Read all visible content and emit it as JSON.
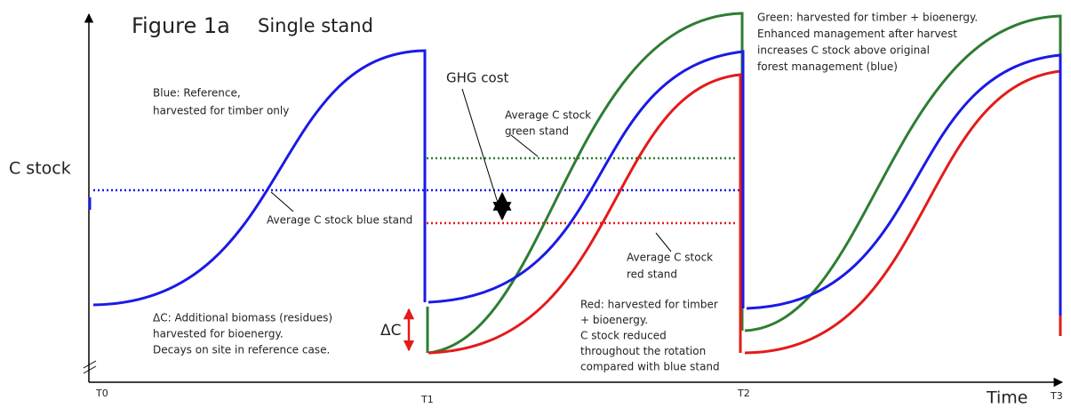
{
  "header": {
    "title": "Figure 1a",
    "subtitle": "Single stand"
  },
  "axes": {
    "y_label": "C stock",
    "x_label": "Time",
    "ticks": [
      "T0",
      "T1",
      "T2",
      "T3"
    ]
  },
  "annotations": {
    "blue_note": [
      "Blue: Reference,",
      "harvested for timber only"
    ],
    "ghg_cost": "GHG cost",
    "avg_green": [
      "Average C stock",
      "green stand"
    ],
    "avg_blue": "Average C stock blue stand",
    "avg_red": [
      "Average C stock",
      "red  stand"
    ],
    "delta_c": "ΔC",
    "delta_c_note": [
      "ΔC: Additional biomass (residues)",
      "harvested for bioenergy.",
      "Decays on site in reference case."
    ],
    "red_note": [
      "Red: harvested for timber",
      "+ bioenergy.",
      "C stock reduced",
      "throughout the rotation",
      "compared with blue stand"
    ],
    "green_note": [
      "Green: harvested for timber + bioenergy.",
      "Enhanced management after harvest",
      "increases C stock above original",
      "forest management (blue)"
    ]
  }
}
